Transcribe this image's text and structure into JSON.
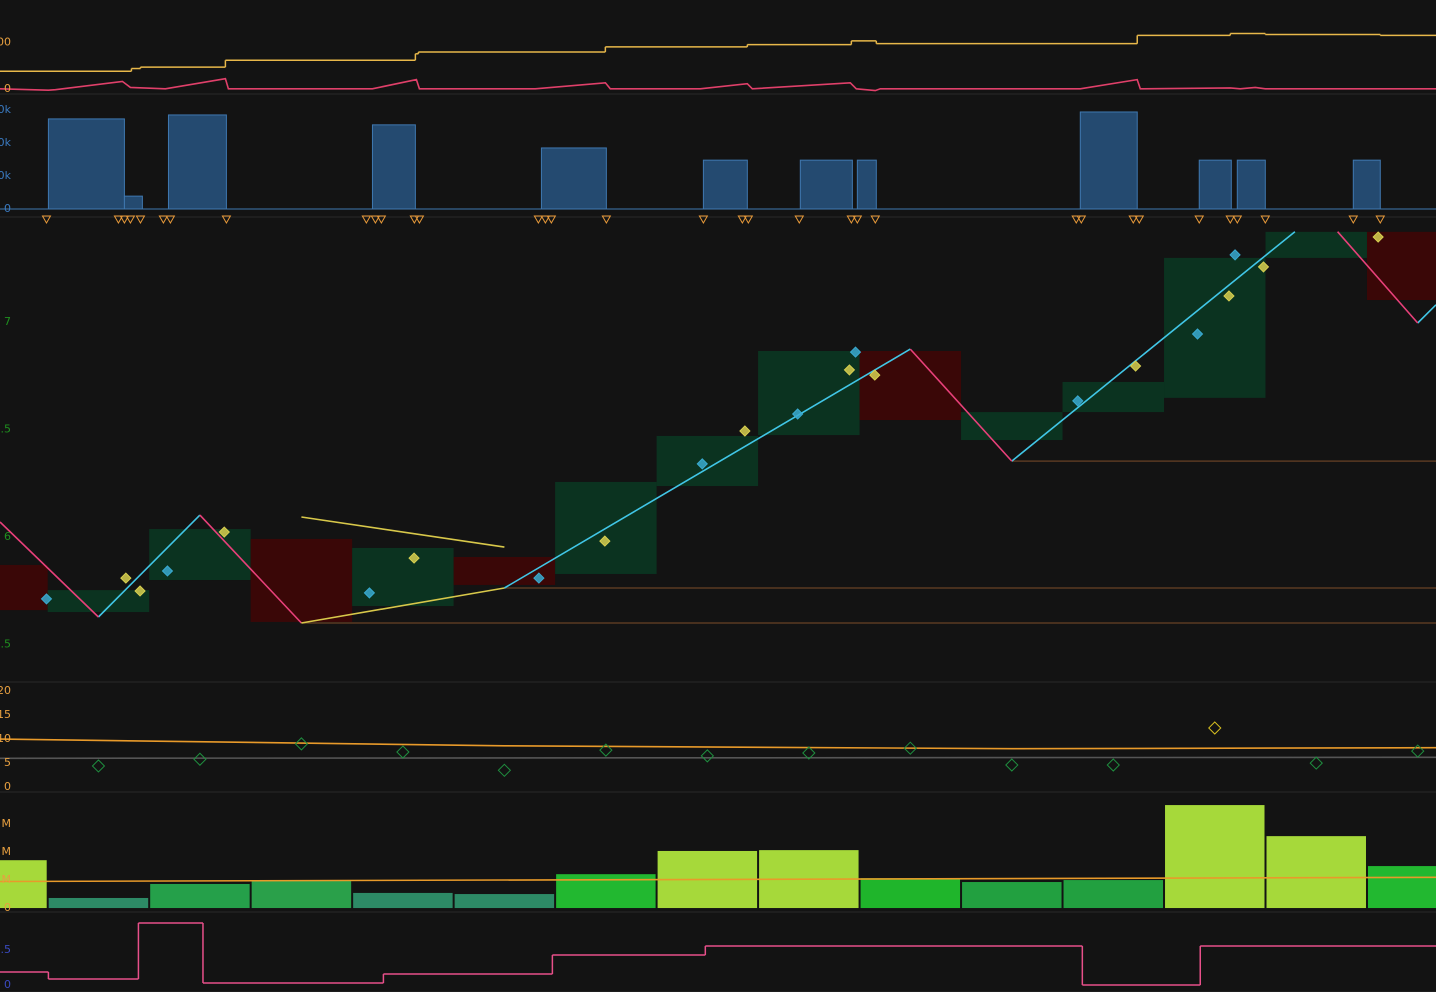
{
  "chart_data": [
    {
      "type": "line",
      "xlim": [
        0.03,
        14.18
      ],
      "ylim": [
        -7,
        182
      ],
      "yticks": [
        {
          "value": 100,
          "label": "00"
        },
        0
      ],
      "tick_color": "#e8a040",
      "series": [
        {
          "color": "#e8b84a",
          "step": true,
          "x": [
            0.03,
            1.325,
            1.414,
            2.251,
            4.123,
            4.153,
            5.995,
            7.394,
            8.419,
            8.665,
            11.236,
            12.153,
            12.498,
            13.631
          ],
          "values": [
            38,
            44,
            47,
            62,
            76,
            80,
            91,
            96,
            104,
            98,
            116,
            120,
            118,
            116
          ]
        },
        {
          "color": "#e0406a",
          "x": [
            0.03,
            0.507,
            0.576,
            1.236,
            1.315,
            1.66,
            2.251,
            2.281,
            3.7,
            4.133,
            4.163,
            5.305,
            5.995,
            6.044,
            6.931,
            7.394,
            7.443,
            8.409,
            8.468,
            8.655,
            8.704,
            10.675,
            11.236,
            11.266,
            12.153,
            12.251,
            12.399,
            12.498,
            14.182
          ],
          "values": [
            0,
            -3,
            -2,
            16,
            3,
            0,
            22,
            0,
            0,
            20,
            0,
            0,
            13,
            0,
            0,
            11,
            0,
            13,
            0,
            -4,
            0,
            0,
            20,
            0,
            2,
            0,
            3,
            0,
            0
          ]
        }
      ]
    },
    {
      "type": "block",
      "xlim": [
        0.03,
        14.18
      ],
      "ylim": [
        -1818,
        31515
      ],
      "yticks": [
        {
          "value": 30000,
          "label": "0k"
        },
        {
          "value": 20000,
          "label": "0k"
        },
        {
          "value": 10000,
          "label": "0k"
        },
        0
      ],
      "tick_color": "#3a7ac0",
      "color": "#244a70",
      "x0": [
        0.507,
        1.256,
        1.69,
        3.7,
        5.365,
        6.961,
        7.916,
        8.478,
        10.675,
        11.847,
        12.222,
        13.365
      ],
      "x1": [
        1.256,
        1.433,
        2.261,
        4.123,
        6.005,
        7.394,
        8.429,
        8.665,
        11.236,
        12.163,
        12.498,
        13.631
      ],
      "values": [
        27300,
        3900,
        28500,
        25500,
        18500,
        14800,
        14800,
        14800,
        29400,
        14800,
        14800,
        14800
      ],
      "markers": {
        "color": "#e89a3a",
        "x": [
          0.488,
          1.197,
          1.256,
          1.315,
          1.414,
          1.64,
          1.709,
          2.261,
          3.64,
          3.729,
          3.788,
          4.113,
          4.163,
          5.335,
          5.404,
          5.463,
          6.005,
          6.961,
          7.345,
          7.404,
          7.906,
          8.419,
          8.478,
          8.655,
          10.635,
          10.685,
          11.197,
          11.256,
          11.847,
          12.153,
          12.222,
          12.498,
          13.365,
          13.631
        ]
      }
    },
    {
      "type": "price",
      "xlim": [
        0.03,
        14.18
      ],
      "ylim": [
        5.335,
        7.437
      ],
      "yticks": [
        7,
        {
          "value": 6.5,
          "label": ".5"
        },
        6,
        {
          "value": 5.5,
          "label": ".5"
        }
      ],
      "tick_color": "#1f8f1f",
      "boxes": {
        "x": [
          0,
          1,
          2,
          3,
          4,
          5,
          6,
          7,
          8,
          9,
          10,
          11,
          12,
          13,
          14
        ],
        "high": [
          5.87,
          5.753,
          6.037,
          5.991,
          5.949,
          5.907,
          6.256,
          6.47,
          6.865,
          6.865,
          6.581,
          6.721,
          7.298,
          7.419,
          7.419
        ],
        "low": [
          5.66,
          5.651,
          5.8,
          5.605,
          5.679,
          5.777,
          5.828,
          6.237,
          6.474,
          6.544,
          6.451,
          6.581,
          6.647,
          7.298,
          7.102
        ],
        "colors": [
          "#3a0707",
          "#0b3320",
          "#0b3320",
          "#3a0707",
          "#0b3320",
          "#3a0707",
          "#0b3320",
          "#0b3320",
          "#0b3320",
          "#3a0707",
          "#0b3320",
          "#0b3320",
          "#0b3320",
          "#0b3320",
          "#3a0707"
        ]
      },
      "levels": {
        "color": "#5a3a22",
        "x": [
          5,
          3,
          10
        ],
        "values": [
          5.763,
          5.6,
          6.353
        ]
      },
      "series": [
        {
          "color": "#41c6e6",
          "x": [
            1,
            2,
            null,
            5,
            9,
            null,
            10,
            12.79,
            null,
            14,
            14.18
          ],
          "values": [
            5.628,
            6.102,
            null,
            5.763,
            6.874,
            null,
            6.353,
            7.42,
            null,
            6.995,
            7.08
          ]
        },
        {
          "color": "#e8407a",
          "x": [
            0.03,
            1,
            null,
            2,
            3,
            null,
            9,
            10,
            null,
            13.21,
            14
          ],
          "values": [
            6.07,
            5.628,
            null,
            6.102,
            5.6,
            null,
            6.874,
            6.353,
            null,
            7.42,
            6.995
          ]
        },
        {
          "color": "#d8c84a",
          "x": [
            3,
            5
          ],
          "values": [
            5.6,
            5.763
          ]
        },
        {
          "color": "#d8c84a",
          "x": [
            3,
            5
          ],
          "values": [
            6.093,
            5.953
          ]
        }
      ],
      "markers": [
        {
          "color": "#3aaad0",
          "x": [
            0.488,
            1.68,
            3.67,
            5.34,
            6.95,
            7.89,
            8.46,
            10.65,
            11.83,
            12.2
          ],
          "values": [
            5.712,
            5.842,
            5.74,
            5.809,
            6.34,
            6.572,
            6.86,
            6.633,
            6.944,
            7.312
          ]
        },
        {
          "color": "#d8d050",
          "x": [
            1.27,
            1.41,
            2.24,
            4.11,
            5.99,
            7.37,
            8.4,
            8.65,
            11.22,
            12.14,
            12.48,
            13.61
          ],
          "values": [
            5.809,
            5.749,
            6.023,
            5.902,
            5.981,
            6.493,
            6.777,
            6.753,
            6.795,
            7.121,
            7.256,
            7.395
          ]
        }
      ]
    },
    {
      "type": "indicator",
      "xlim": [
        0.03,
        14.18
      ],
      "ylim": [
        -0.6,
        21.25
      ],
      "yticks": [
        20,
        15,
        10,
        5,
        0
      ],
      "tick_color": "#e8a040",
      "series": [
        {
          "color": "#555555",
          "x": [
            0.03,
            14.18
          ],
          "values": [
            6,
            6.2
          ]
        },
        {
          "color": "#e89a2a",
          "x": [
            0.03,
            5,
            10,
            14.18
          ],
          "values": [
            10,
            8.6,
            8,
            8.2
          ]
        }
      ],
      "markers": {
        "x": [
          1,
          2,
          3,
          4,
          5,
          6,
          7,
          8,
          9,
          10,
          11,
          12,
          13,
          14
        ],
        "values": [
          4.4,
          5.8,
          9,
          7.3,
          3.5,
          7.7,
          6.5,
          7.1,
          8.1,
          4.6,
          4.6,
          12.3,
          5,
          7.5
        ],
        "colors": [
          "#1f8f3f",
          "#1f8f3f",
          "#1f8f3f",
          "#1f8f3f",
          "#1f8f3f",
          "#1f8f3f",
          "#1f8f3f",
          "#1f8f3f",
          "#1f8f3f",
          "#1f8f3f",
          "#1f8f3f",
          "#d8c020",
          "#1f8f3f",
          "#1f8f3f"
        ]
      }
    },
    {
      "type": "bar",
      "xlim": [
        0.03,
        14.18
      ],
      "ylim": [
        -0.07,
        4.04
      ],
      "yticks": [
        {
          "value": 3,
          "label": "M"
        },
        {
          "value": 2,
          "label": "M"
        },
        {
          "value": 1,
          "label": "M"
        },
        0
      ],
      "tick_color": "#e8a040",
      "x": [
        0,
        1,
        2,
        3,
        4,
        5,
        6,
        7,
        8,
        9,
        10,
        11,
        12,
        13,
        14
      ],
      "values": [
        1.71,
        0.36,
        0.86,
        1.0,
        0.54,
        0.5,
        1.21,
        2.04,
        2.07,
        1.07,
        0.93,
        1.0,
        3.68,
        2.57,
        1.5
      ],
      "colors": [
        "#a6d93a",
        "#2d8a66",
        "#25a04a",
        "#2aa04a",
        "#2d8a66",
        "#2d8a66",
        "#22b830",
        "#a6d93a",
        "#a6d93a",
        "#1fb52b",
        "#22a040",
        "#22a040",
        "#a6d93a",
        "#a6d93a",
        "#22b830"
      ],
      "series": [
        {
          "color": "#e89a2a",
          "x": [
            0.03,
            14.18
          ],
          "values": [
            0.95,
            1.1
          ]
        }
      ]
    },
    {
      "type": "line",
      "xlim": [
        0.03,
        14.18
      ],
      "ylim": [
        -0.071,
        1.0
      ],
      "yticks": [
        {
          "value": 0.5,
          "label": ".5"
        },
        0
      ],
      "tick_color": "#3a4ac0",
      "series": [
        {
          "color": "#e8508a",
          "step": true,
          "x": [
            0.03,
            0.507,
            1.394,
            2.03,
            3.808,
            5.473,
            6.98,
            10.695,
            11.857
          ],
          "values": [
            0.186,
            0.086,
            0.886,
            0.029,
            0.157,
            0.429,
            0.557,
            0,
            0.557
          ]
        }
      ]
    }
  ]
}
